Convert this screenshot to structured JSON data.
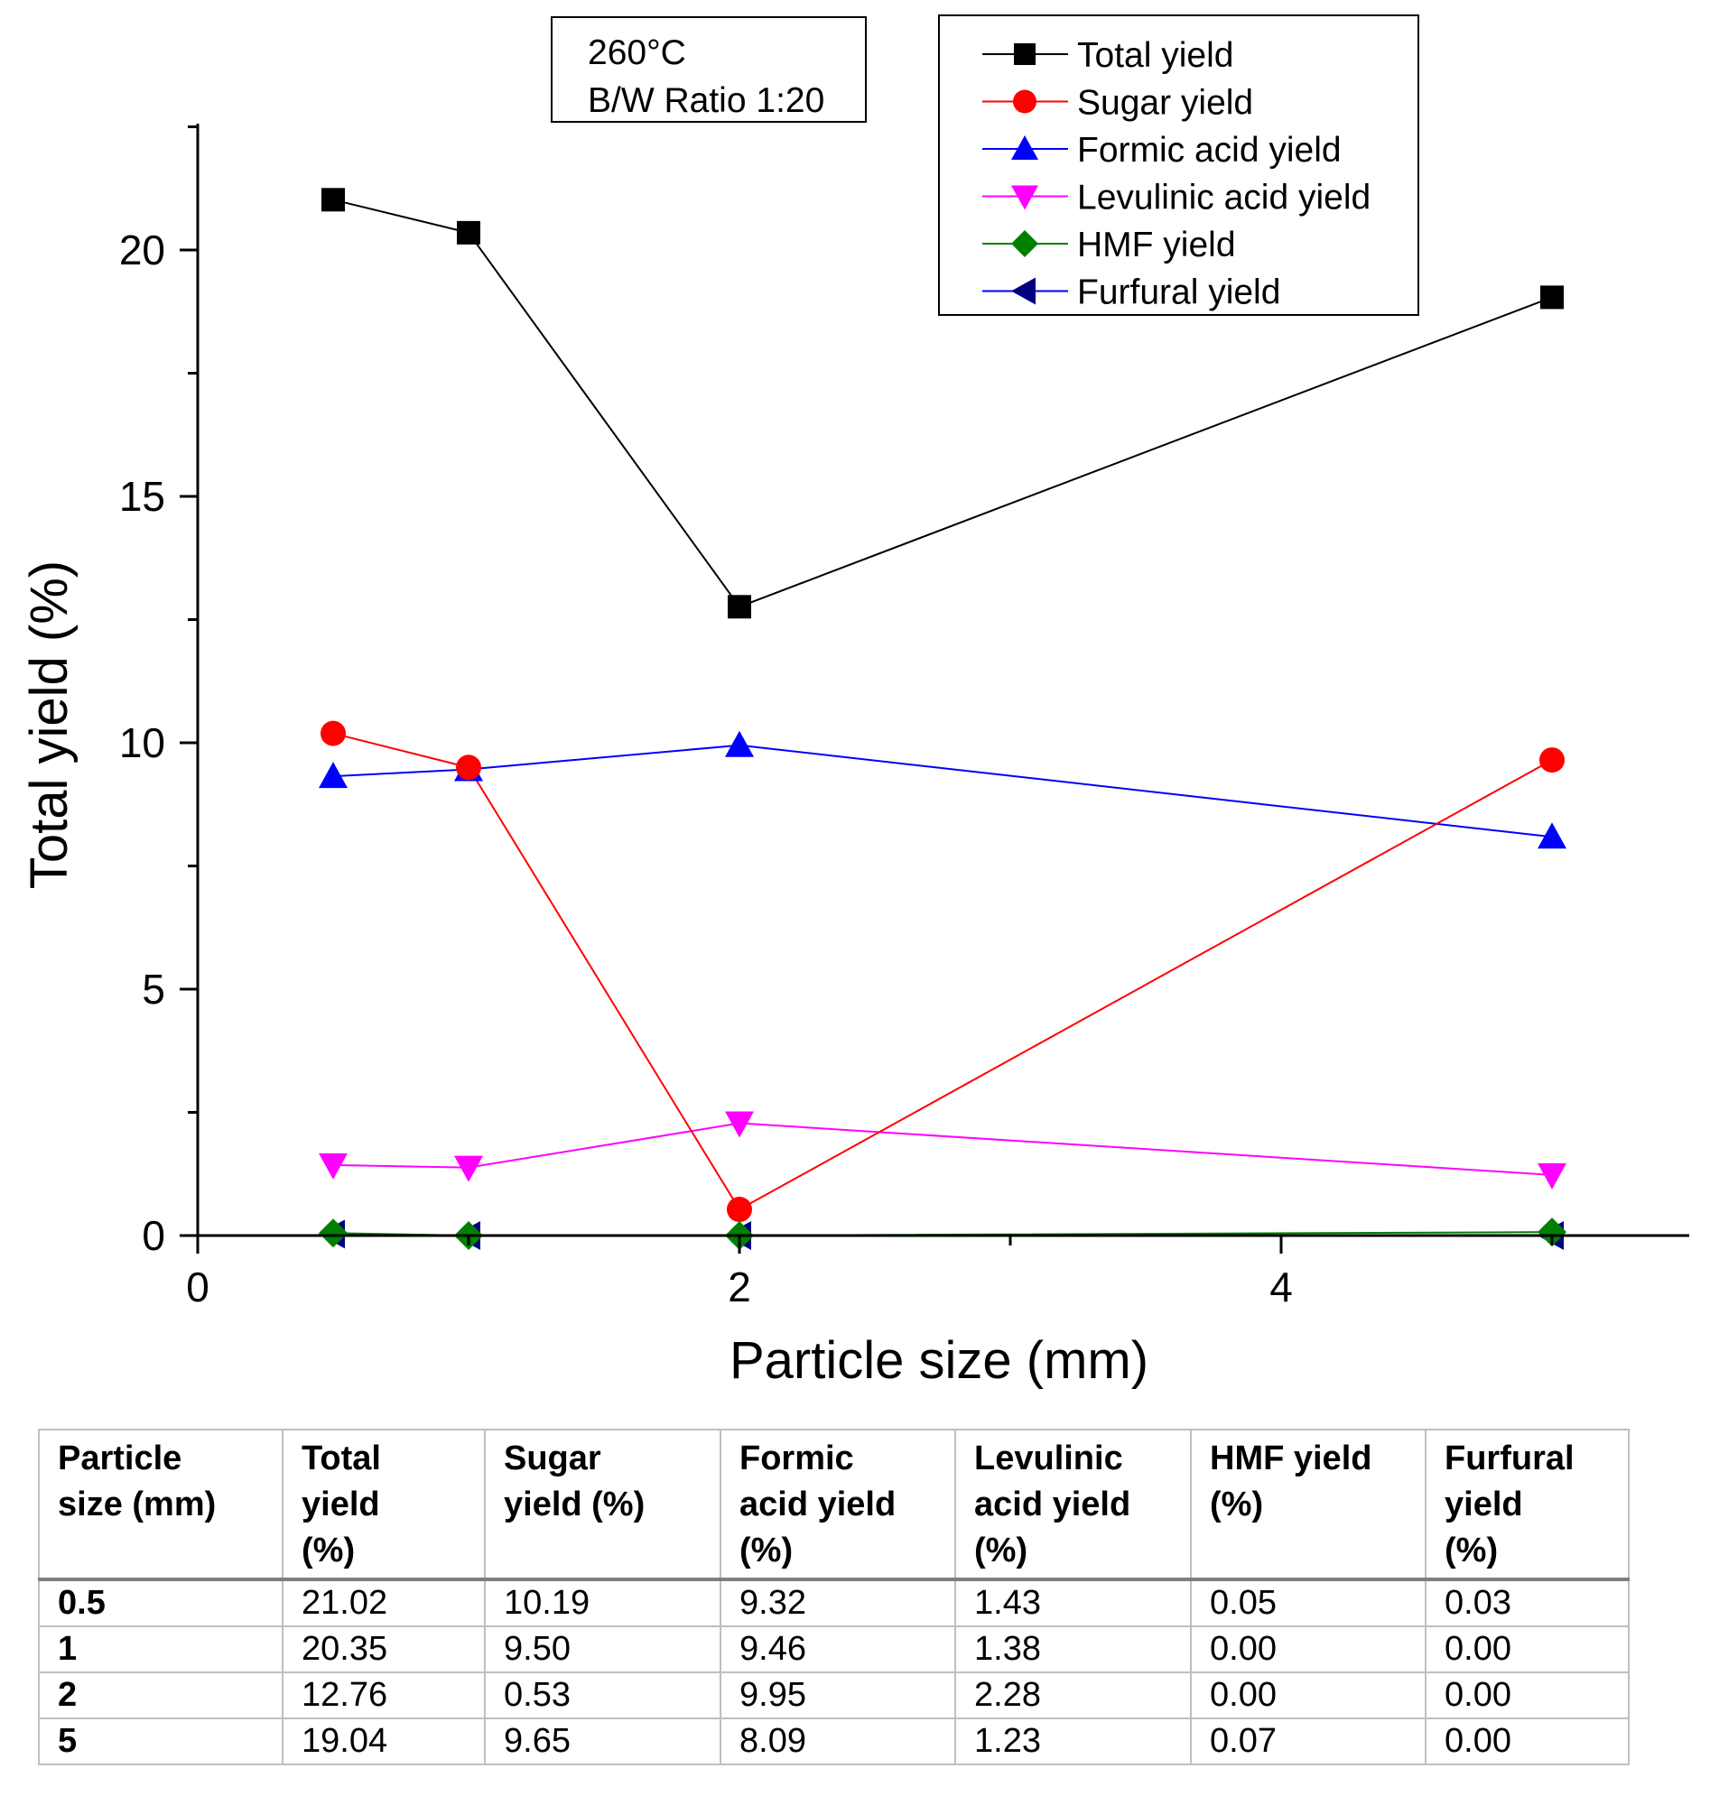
{
  "chart_data": {
    "type": "line",
    "title": "",
    "xlabel": "Particle size (mm)",
    "ylabel": "Total yield (%)",
    "xlim": [
      0,
      5.5
    ],
    "ylim": [
      0,
      22.5
    ],
    "xticks": [
      0,
      2,
      4
    ],
    "xtick_labels": [
      "0",
      "2",
      "4"
    ],
    "yticks": [
      0,
      5,
      10,
      15,
      20
    ],
    "ytick_labels": [
      "0",
      "5",
      "10",
      "15",
      "20"
    ],
    "x": [
      0.5,
      1,
      2,
      5
    ],
    "series": [
      {
        "name": "Total yield",
        "color": "#000000",
        "line_color": "#000000",
        "marker": "square",
        "values": [
          21.02,
          20.35,
          12.76,
          19.04
        ]
      },
      {
        "name": "Sugar yield",
        "color": "#ff0000",
        "line_color": "#ff0000",
        "marker": "circle",
        "values": [
          10.19,
          9.5,
          0.53,
          9.65
        ]
      },
      {
        "name": "Formic acid yield",
        "color": "#0000ff",
        "line_color": "#0000ff",
        "marker": "triangle-up",
        "values": [
          9.32,
          9.46,
          9.95,
          8.09
        ]
      },
      {
        "name": "Levulinic acid yield",
        "color": "#ff00ff",
        "line_color": "#ff00ff",
        "marker": "triangle-down",
        "values": [
          1.43,
          1.38,
          2.28,
          1.23
        ]
      },
      {
        "name": "HMF yield",
        "color": "#008000",
        "line_color": "#008000",
        "marker": "diamond",
        "values": [
          0.05,
          0.0,
          0.0,
          0.07
        ]
      },
      {
        "name": "Furfural yield",
        "color": "#000080",
        "line_color": "#0000ff",
        "marker": "triangle-left",
        "values": [
          0.03,
          0.0,
          0.0,
          0.0
        ]
      }
    ],
    "annotation": [
      "260°C",
      "B/W Ratio 1:20"
    ],
    "legend_position": "top-right"
  },
  "table": {
    "headers": [
      [
        "Particle",
        "size (mm)"
      ],
      [
        "Total",
        "yield",
        "(%)"
      ],
      [
        "Sugar",
        "yield (%)"
      ],
      [
        "Formic",
        "acid yield",
        "(%)"
      ],
      [
        "Levulinic",
        "acid yield",
        "(%)"
      ],
      [
        "HMF yield",
        "(%)"
      ],
      [
        "Furfural",
        "yield",
        "(%)"
      ]
    ],
    "rows": [
      [
        "0.5",
        "21.02",
        "10.19",
        "9.32",
        "1.43",
        "0.05",
        "0.03"
      ],
      [
        "1",
        "20.35",
        "9.50",
        "9.46",
        "1.38",
        "0.00",
        "0.00"
      ],
      [
        "2",
        "12.76",
        "0.53",
        "9.95",
        "2.28",
        "0.00",
        "0.00"
      ],
      [
        "5",
        "19.04",
        "9.65",
        "8.09",
        "1.23",
        "0.07",
        "0.00"
      ]
    ]
  }
}
